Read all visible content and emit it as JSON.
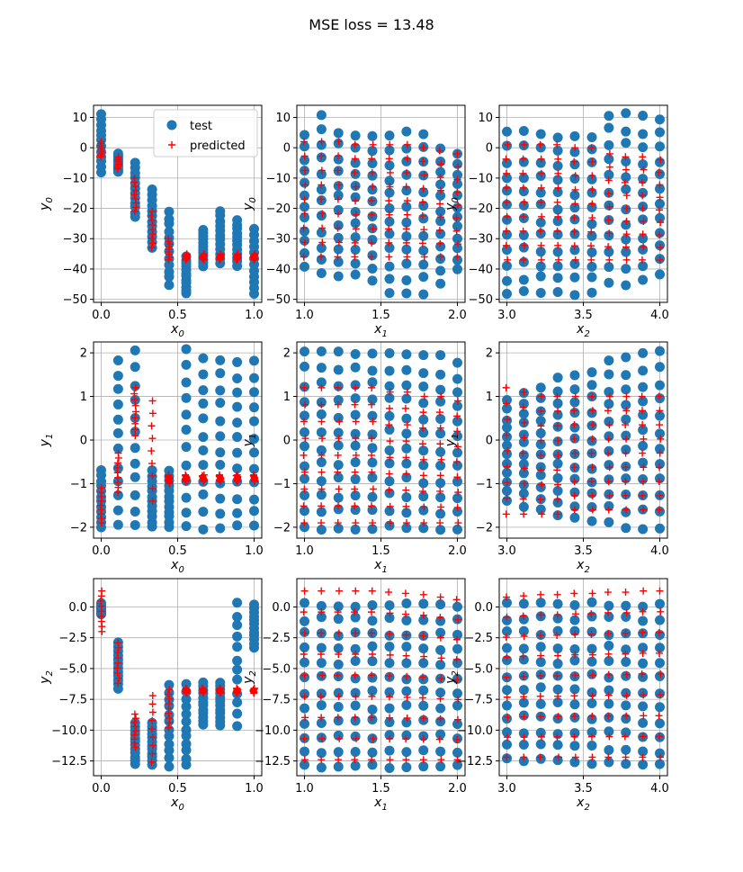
{
  "figure": {
    "title": "MSE loss = 13.48"
  },
  "colors": {
    "test": "#1f77b4",
    "predicted": "#ff0000",
    "grid": "#b0b0b0"
  },
  "legend": {
    "placement": "top-right",
    "entries": [
      {
        "label": "test",
        "marker": "circle"
      },
      {
        "label": "predicted",
        "marker": "plus"
      }
    ]
  },
  "chart_data": [
    {
      "type": "scatter",
      "xlabel": "x",
      "xlabel_sub": "0",
      "ylabel": "y",
      "ylabel_sub": "0",
      "xlim": [
        -0.05,
        1.05
      ],
      "ylim": [
        -51,
        14
      ],
      "grid": true,
      "xticks": [
        0.0,
        0.5,
        1.0
      ],
      "xtick_labels": [
        "0.0",
        "0.5",
        "1.0"
      ],
      "yticks": [
        10,
        0,
        -10,
        -20,
        -30,
        -40,
        -50
      ],
      "ytick_labels": [
        "10",
        "0",
        "−10",
        "−20",
        "−30",
        "−40",
        "−50"
      ],
      "x": [
        0.0,
        0.111,
        0.222,
        0.333,
        0.444,
        0.556,
        0.667,
        0.778,
        0.889,
        1.0
      ],
      "test_range": [
        [
          -8,
          11
        ],
        [
          -8,
          -2
        ],
        [
          -23,
          -5
        ],
        [
          -33,
          -14
        ],
        [
          -45,
          -21
        ],
        [
          -48,
          -36
        ],
        [
          -39,
          -27
        ],
        [
          -38,
          -21
        ],
        [
          -39,
          -24
        ],
        [
          -48,
          -27
        ]
      ],
      "pred_range": [
        [
          -3,
          2
        ],
        [
          -7,
          -3
        ],
        [
          -21,
          -10
        ],
        [
          -33,
          -21
        ],
        [
          -37,
          -30
        ],
        [
          -37,
          -35
        ],
        [
          -37,
          -35
        ],
        [
          -37,
          -35
        ],
        [
          -37,
          -35
        ],
        [
          -37,
          -35
        ]
      ],
      "legend": true
    },
    {
      "type": "scatter",
      "xlabel": "x",
      "xlabel_sub": "1",
      "ylabel": "y",
      "ylabel_sub": "0",
      "xlim": [
        0.95,
        2.05
      ],
      "ylim": [
        -51,
        14
      ],
      "grid": true,
      "xticks": [
        1.0,
        1.5,
        2.0
      ],
      "xtick_labels": [
        "1.0",
        "1.5",
        "2.0"
      ],
      "yticks": [
        10,
        0,
        -10,
        -20,
        -30,
        -40,
        -50
      ],
      "ytick_labels": [
        "10",
        "0",
        "−10",
        "−20",
        "−30",
        "−40",
        "−50"
      ],
      "x": [
        1.0,
        1.111,
        1.222,
        1.333,
        1.444,
        1.556,
        1.667,
        1.778,
        1.889,
        2.0
      ],
      "test_range": [
        [
          -39,
          4
        ],
        [
          -42,
          11
        ],
        [
          -42,
          5
        ],
        [
          -42,
          4
        ],
        [
          -44,
          4
        ],
        [
          -48,
          4
        ],
        [
          -48,
          5
        ],
        [
          -48,
          5
        ],
        [
          -45,
          0
        ],
        [
          -40,
          -2
        ]
      ],
      "pred_range": [
        [
          -36,
          2
        ],
        [
          -36,
          2
        ],
        [
          -36,
          2
        ],
        [
          -36,
          1
        ],
        [
          -36,
          1
        ],
        [
          -36,
          1
        ],
        [
          -36,
          1
        ],
        [
          -36,
          0
        ],
        [
          -36,
          -1
        ],
        [
          -36,
          -2
        ]
      ],
      "legend": false
    },
    {
      "type": "scatter",
      "xlabel": "x",
      "xlabel_sub": "2",
      "ylabel": "y",
      "ylabel_sub": "0",
      "xlim": [
        2.95,
        4.05
      ],
      "ylim": [
        -51,
        14
      ],
      "grid": true,
      "xticks": [
        3.0,
        3.5,
        4.0
      ],
      "xtick_labels": [
        "3.0",
        "3.5",
        "4.0"
      ],
      "yticks": [
        10,
        0,
        -10,
        -20,
        -30,
        -40,
        -50
      ],
      "ytick_labels": [
        "10",
        "0",
        "−10",
        "−20",
        "−30",
        "−40",
        "−50"
      ],
      "x": [
        3.0,
        3.111,
        3.222,
        3.333,
        3.444,
        3.556,
        3.667,
        3.778,
        3.889,
        4.0
      ],
      "test_range": [
        [
          -48,
          5
        ],
        [
          -48,
          5
        ],
        [
          -48,
          5
        ],
        [
          -48,
          4
        ],
        [
          -48,
          4
        ],
        [
          -48,
          4
        ],
        [
          -45,
          11
        ],
        [
          -45,
          11
        ],
        [
          -44,
          10
        ],
        [
          -42,
          10
        ]
      ],
      "pred_range": [
        [
          -37,
          1
        ],
        [
          -37,
          1
        ],
        [
          -37,
          1
        ],
        [
          -37,
          1
        ],
        [
          -37,
          0
        ],
        [
          -37,
          0
        ],
        [
          -37,
          -2
        ],
        [
          -37,
          -3
        ],
        [
          -37,
          -3
        ],
        [
          -37,
          -4
        ]
      ],
      "legend": false
    },
    {
      "type": "scatter",
      "xlabel": "x",
      "xlabel_sub": "0",
      "ylabel": "y",
      "ylabel_sub": "1",
      "xlim": [
        -0.05,
        1.05
      ],
      "ylim": [
        -2.25,
        2.25
      ],
      "grid": true,
      "xticks": [
        0.0,
        0.5,
        1.0
      ],
      "xtick_labels": [
        "0.0",
        "0.5",
        "1.0"
      ],
      "yticks": [
        2,
        1,
        0,
        -1,
        -2
      ],
      "ytick_labels": [
        "2",
        "1",
        "0",
        "−1",
        "−2"
      ],
      "x": [
        0.0,
        0.111,
        0.222,
        0.333,
        0.444,
        0.556,
        0.667,
        0.778,
        0.889,
        1.0
      ],
      "test_range": [
        [
          -2.0,
          -0.7
        ],
        [
          -2.0,
          1.85
        ],
        [
          -2.0,
          2.0
        ],
        [
          -2.0,
          -0.7
        ],
        [
          -2.0,
          -0.7
        ],
        [
          -2.0,
          2.05
        ],
        [
          -2.0,
          1.85
        ],
        [
          -2.0,
          1.85
        ],
        [
          -2.0,
          1.8
        ],
        [
          -2.0,
          1.8
        ]
      ],
      "pred_range": [
        [
          -1.9,
          -1.1
        ],
        [
          -1.2,
          -0.3
        ],
        [
          0.1,
          1.2
        ],
        [
          -1.4,
          0.9
        ],
        [
          -1.0,
          -0.8
        ],
        [
          -0.95,
          -0.8
        ],
        [
          -0.95,
          -0.8
        ],
        [
          -0.95,
          -0.8
        ],
        [
          -0.95,
          -0.8
        ],
        [
          -0.95,
          -0.8
        ]
      ],
      "legend": false
    },
    {
      "type": "scatter",
      "xlabel": "x",
      "xlabel_sub": "1",
      "ylabel": "y",
      "ylabel_sub": "1",
      "xlim": [
        0.95,
        2.05
      ],
      "ylim": [
        -2.25,
        2.25
      ],
      "grid": true,
      "xticks": [
        1.0,
        1.5,
        2.0
      ],
      "xtick_labels": [
        "1.0",
        "1.5",
        "2.0"
      ],
      "yticks": [
        2,
        1,
        0,
        -1,
        -2
      ],
      "ytick_labels": [
        "2",
        "1",
        "0",
        "−1",
        "−2"
      ],
      "x": [
        1.0,
        1.111,
        1.222,
        1.333,
        1.444,
        1.556,
        1.667,
        1.778,
        1.889,
        2.0
      ],
      "test_range": [
        [
          -2.0,
          2.0
        ],
        [
          -2.0,
          2.0
        ],
        [
          -2.0,
          2.0
        ],
        [
          -2.0,
          2.0
        ],
        [
          -2.0,
          2.0
        ],
        [
          -2.0,
          2.0
        ],
        [
          -2.0,
          2.0
        ],
        [
          -2.0,
          1.9
        ],
        [
          -2.0,
          1.9
        ],
        [
          -2.0,
          1.8
        ]
      ],
      "pred_range": [
        [
          -1.9,
          1.2
        ],
        [
          -1.9,
          1.2
        ],
        [
          -1.9,
          1.2
        ],
        [
          -1.9,
          1.2
        ],
        [
          -1.9,
          1.2
        ],
        [
          -1.9,
          1.1
        ],
        [
          -1.9,
          1.1
        ],
        [
          -1.9,
          1.0
        ],
        [
          -1.9,
          1.0
        ],
        [
          -1.9,
          0.9
        ]
      ],
      "legend": false
    },
    {
      "type": "scatter",
      "xlabel": "x",
      "xlabel_sub": "2",
      "ylabel": "y",
      "ylabel_sub": "1",
      "xlim": [
        2.95,
        4.05
      ],
      "ylim": [
        -2.25,
        2.25
      ],
      "grid": true,
      "xticks": [
        3.0,
        3.5,
        4.0
      ],
      "xtick_labels": [
        "3.0",
        "3.5",
        "4.0"
      ],
      "yticks": [
        2,
        1,
        0,
        -1,
        -2
      ],
      "ytick_labels": [
        "2",
        "1",
        "0",
        "−1",
        "−2"
      ],
      "x": [
        3.0,
        3.111,
        3.222,
        3.333,
        3.444,
        3.556,
        3.667,
        3.778,
        3.889,
        4.0
      ],
      "test_range": [
        [
          -1.4,
          0.9
        ],
        [
          -1.5,
          1.1
        ],
        [
          -1.6,
          1.2
        ],
        [
          -1.7,
          1.4
        ],
        [
          -1.8,
          1.5
        ],
        [
          -1.9,
          1.6
        ],
        [
          -1.9,
          1.8
        ],
        [
          -2.0,
          1.9
        ],
        [
          -2.0,
          2.0
        ],
        [
          -2.0,
          2.0
        ]
      ],
      "pred_range": [
        [
          -1.7,
          1.2
        ],
        [
          -1.7,
          1.1
        ],
        [
          -1.7,
          1.0
        ],
        [
          -1.7,
          1.0
        ],
        [
          -1.6,
          1.0
        ],
        [
          -1.6,
          1.0
        ],
        [
          -1.6,
          1.0
        ],
        [
          -1.6,
          1.0
        ],
        [
          -1.6,
          1.0
        ],
        [
          -1.6,
          1.0
        ]
      ],
      "legend": false
    },
    {
      "type": "scatter",
      "xlabel": "x",
      "xlabel_sub": "0",
      "ylabel": "y",
      "ylabel_sub": "2",
      "xlim": [
        -0.05,
        1.05
      ],
      "ylim": [
        -13.7,
        2.3
      ],
      "grid": true,
      "xticks": [
        0.0,
        0.5,
        1.0
      ],
      "xtick_labels": [
        "0.0",
        "0.5",
        "1.0"
      ],
      "yticks": [
        0,
        -2.5,
        -5,
        -7.5,
        -10,
        -12.5
      ],
      "ytick_labels": [
        "0.0",
        "−2.5",
        "−5.0",
        "−7.5",
        "−10.0",
        "−12.5"
      ],
      "x": [
        0.0,
        0.111,
        0.222,
        0.333,
        0.444,
        0.556,
        0.667,
        0.778,
        0.889,
        1.0
      ],
      "test_range": [
        [
          -0.6,
          0.3
        ],
        [
          -6.6,
          -2.9
        ],
        [
          -12.8,
          -9.4
        ],
        [
          -12.8,
          -9.4
        ],
        [
          -12.9,
          -6.3
        ],
        [
          -12.9,
          -6.3
        ],
        [
          -9.6,
          -6.1
        ],
        [
          -9.6,
          -6.1
        ],
        [
          -9.6,
          0.2
        ],
        [
          -3.3,
          0.2
        ]
      ],
      "pred_range": [
        [
          -2.0,
          1.3
        ],
        [
          -6.2,
          -2.9
        ],
        [
          -11.4,
          -8.7
        ],
        [
          -12.6,
          -7.2
        ],
        [
          -9.8,
          -6.7
        ],
        [
          -7.0,
          -6.6
        ],
        [
          -7.0,
          -6.6
        ],
        [
          -7.0,
          -6.6
        ],
        [
          -7.0,
          -6.6
        ],
        [
          -7.0,
          -6.6
        ]
      ],
      "legend": false
    },
    {
      "type": "scatter",
      "xlabel": "x",
      "xlabel_sub": "1",
      "ylabel": "y",
      "ylabel_sub": "2",
      "xlim": [
        0.95,
        2.05
      ],
      "ylim": [
        -13.7,
        2.3
      ],
      "grid": true,
      "xticks": [
        1.0,
        1.5,
        2.0
      ],
      "xtick_labels": [
        "1.0",
        "1.5",
        "2.0"
      ],
      "yticks": [
        0,
        -2.5,
        -5,
        -7.5,
        -10,
        -12.5
      ],
      "ytick_labels": [
        "0.0",
        "−2.5",
        "−5.0",
        "−7.5",
        "−10.0",
        "−12.5"
      ],
      "x": [
        1.0,
        1.111,
        1.222,
        1.333,
        1.444,
        1.556,
        1.667,
        1.778,
        1.889,
        2.0
      ],
      "test_range": [
        [
          -12.9,
          0.2
        ],
        [
          -12.9,
          0.2
        ],
        [
          -12.9,
          0.2
        ],
        [
          -12.9,
          0.2
        ],
        [
          -12.9,
          0.2
        ],
        [
          -12.9,
          0.2
        ],
        [
          -12.9,
          0.2
        ],
        [
          -12.9,
          0.2
        ],
        [
          -12.9,
          0.2
        ],
        [
          -12.9,
          0.2
        ]
      ],
      "pred_range": [
        [
          -12.4,
          1.3
        ],
        [
          -12.4,
          1.3
        ],
        [
          -12.4,
          1.3
        ],
        [
          -12.4,
          1.3
        ],
        [
          -12.4,
          1.3
        ],
        [
          -12.4,
          1.2
        ],
        [
          -12.4,
          1.1
        ],
        [
          -12.4,
          1.0
        ],
        [
          -12.4,
          0.8
        ],
        [
          -12.4,
          0.6
        ]
      ],
      "legend": false
    },
    {
      "type": "scatter",
      "xlabel": "x",
      "xlabel_sub": "2",
      "ylabel": "y",
      "ylabel_sub": "2",
      "xlim": [
        2.95,
        4.05
      ],
      "ylim": [
        -13.7,
        2.3
      ],
      "grid": true,
      "xticks": [
        3.0,
        3.5,
        4.0
      ],
      "xtick_labels": [
        "3.0",
        "3.5",
        "4.0"
      ],
      "yticks": [
        0,
        -2.5,
        -5,
        -7.5,
        -10,
        -12.5
      ],
      "ytick_labels": [
        "0.0",
        "−2.5",
        "−5.0",
        "−7.5",
        "−10.0",
        "−12.5"
      ],
      "x": [
        3.0,
        3.111,
        3.222,
        3.333,
        3.444,
        3.556,
        3.667,
        3.778,
        3.889,
        4.0
      ],
      "test_range": [
        [
          -12.4,
          0.2
        ],
        [
          -12.4,
          0.2
        ],
        [
          -12.4,
          0.2
        ],
        [
          -12.5,
          0.2
        ],
        [
          -12.5,
          0.2
        ],
        [
          -12.6,
          0.2
        ],
        [
          -12.6,
          0.2
        ],
        [
          -12.7,
          0.2
        ],
        [
          -12.8,
          0.2
        ],
        [
          -12.9,
          0.2
        ]
      ],
      "pred_range": [
        [
          -12.2,
          0.8
        ],
        [
          -12.2,
          0.9
        ],
        [
          -12.2,
          1.0
        ],
        [
          -12.2,
          1.0
        ],
        [
          -12.2,
          1.1
        ],
        [
          -12.2,
          1.1
        ],
        [
          -12.2,
          1.2
        ],
        [
          -12.2,
          1.2
        ],
        [
          -12.2,
          1.3
        ],
        [
          -12.2,
          1.3
        ]
      ],
      "legend": false
    }
  ]
}
